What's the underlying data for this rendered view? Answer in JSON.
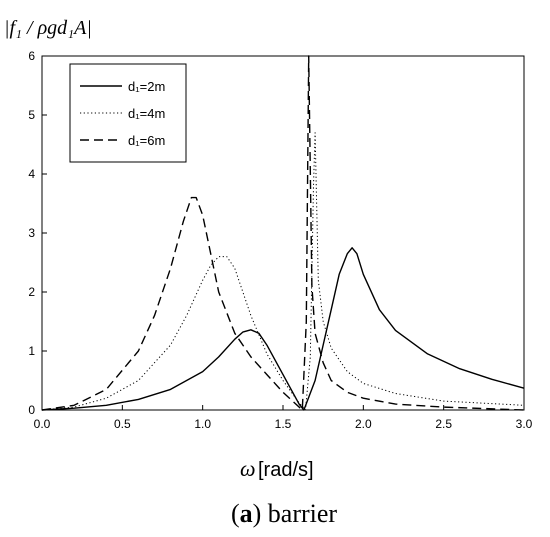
{
  "chart_data": {
    "type": "line",
    "ylabel": "|f₁ / ρgd₁A|",
    "xlabel": {
      "symbol": "ω",
      "unit": "[rad/s]"
    },
    "caption": {
      "letter": "(a)",
      "text": "barrier"
    },
    "xlim": [
      0,
      3
    ],
    "ylim": [
      0,
      6
    ],
    "xticks": [
      "0.0",
      "0.5",
      "1.0",
      "1.5",
      "2.0",
      "2.5",
      "3.0"
    ],
    "yticks": [
      "0",
      "1",
      "2",
      "3",
      "4",
      "5",
      "6"
    ],
    "legend_position": "top-left",
    "grid": false,
    "series": [
      {
        "name": "d₁=2m",
        "style": "solid",
        "x": [
          0.0,
          0.2,
          0.4,
          0.6,
          0.8,
          1.0,
          1.1,
          1.2,
          1.25,
          1.3,
          1.35,
          1.4,
          1.5,
          1.6,
          1.63,
          1.7,
          1.8,
          1.85,
          1.9,
          1.93,
          1.96,
          2.0,
          2.1,
          2.2,
          2.4,
          2.6,
          2.8,
          3.0
        ],
        "y": [
          0.0,
          0.03,
          0.08,
          0.18,
          0.35,
          0.65,
          0.9,
          1.2,
          1.32,
          1.36,
          1.3,
          1.1,
          0.6,
          0.1,
          0.0,
          0.5,
          1.7,
          2.3,
          2.65,
          2.75,
          2.65,
          2.3,
          1.7,
          1.35,
          0.95,
          0.7,
          0.52,
          0.37
        ]
      },
      {
        "name": "d₁=4m",
        "style": "dotted",
        "x": [
          0.0,
          0.2,
          0.4,
          0.6,
          0.8,
          0.9,
          1.0,
          1.05,
          1.1,
          1.15,
          1.2,
          1.3,
          1.4,
          1.5,
          1.6,
          1.64,
          1.67,
          1.69,
          1.7,
          1.72,
          1.75,
          1.8,
          1.9,
          2.0,
          2.2,
          2.5,
          3.0
        ],
        "y": [
          0.0,
          0.05,
          0.2,
          0.5,
          1.1,
          1.6,
          2.2,
          2.45,
          2.6,
          2.6,
          2.4,
          1.6,
          0.95,
          0.5,
          0.12,
          0.0,
          0.9,
          3.8,
          4.7,
          2.2,
          1.5,
          1.05,
          0.65,
          0.45,
          0.28,
          0.15,
          0.08
        ]
      },
      {
        "name": "d₁=6m",
        "style": "dashed",
        "x": [
          0.0,
          0.2,
          0.4,
          0.6,
          0.7,
          0.8,
          0.88,
          0.93,
          0.96,
          1.0,
          1.1,
          1.2,
          1.3,
          1.4,
          1.5,
          1.58,
          1.62,
          1.645,
          1.66,
          1.68,
          1.7,
          1.75,
          1.8,
          1.9,
          2.0,
          2.2,
          2.5,
          3.0
        ],
        "y": [
          0.0,
          0.08,
          0.35,
          1.0,
          1.6,
          2.4,
          3.2,
          3.6,
          3.6,
          3.3,
          2.0,
          1.3,
          0.9,
          0.6,
          0.3,
          0.1,
          0.0,
          1.5,
          6.0,
          2.1,
          1.3,
          0.8,
          0.5,
          0.3,
          0.2,
          0.1,
          0.05,
          0.0
        ]
      }
    ]
  }
}
